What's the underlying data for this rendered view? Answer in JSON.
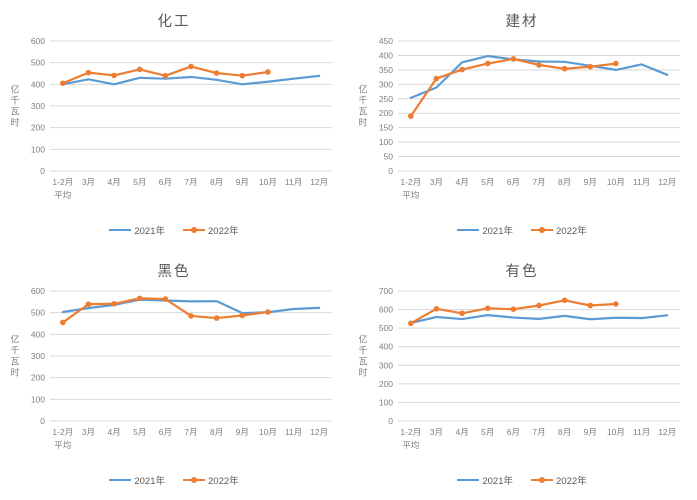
{
  "page": {
    "background": "#ffffff"
  },
  "colors": {
    "series_2021": "#5B9BD5",
    "series_2022": "#ED7D31",
    "gridline": "#D9D9D9",
    "axis_text": "#7F7F7F",
    "title_text": "#595959"
  },
  "chart_data": [
    {
      "type": "line",
      "title": "化工",
      "ylabel": "亿千瓦时",
      "categories": [
        [
          "1-2月",
          "平均"
        ],
        "3月",
        "4月",
        "5月",
        "6月",
        "7月",
        "8月",
        "9月",
        "10月",
        "11月",
        "12月"
      ],
      "ylim": [
        0,
        600
      ],
      "ytick_step": 100,
      "grid": true,
      "legend_position": "bottom",
      "series": [
        {
          "name": "2021年",
          "color": "#5B9BD5",
          "marker": false,
          "values": [
            400,
            423,
            400,
            430,
            426,
            434,
            421,
            400,
            412,
            426,
            439
          ]
        },
        {
          "name": "2022年",
          "color": "#ED7D31",
          "marker": true,
          "values": [
            405,
            454,
            441,
            469,
            440,
            482,
            452,
            440,
            457
          ]
        }
      ]
    },
    {
      "type": "line",
      "title": "建材",
      "ylabel": "亿千瓦时",
      "categories": [
        [
          "1-2月",
          "平均"
        ],
        "3月",
        "4月",
        "5月",
        "6月",
        "7月",
        "8月",
        "9月",
        "10月",
        "11月",
        "12月"
      ],
      "ylim": [
        0,
        450
      ],
      "ytick_step": 50,
      "grid": true,
      "legend_position": "bottom",
      "series": [
        {
          "name": "2021年",
          "color": "#5B9BD5",
          "marker": false,
          "values": [
            253,
            289,
            376,
            398,
            386,
            379,
            378,
            364,
            350,
            369,
            333
          ]
        },
        {
          "name": "2022年",
          "color": "#ED7D31",
          "marker": true,
          "values": [
            190,
            320,
            351,
            372,
            388,
            367,
            354,
            361,
            372
          ]
        }
      ]
    },
    {
      "type": "line",
      "title": "黑色",
      "ylabel": "亿千瓦时",
      "categories": [
        [
          "1-2月",
          "平均"
        ],
        "3月",
        "4月",
        "5月",
        "6月",
        "7月",
        "8月",
        "9月",
        "10月",
        "11月",
        "12月"
      ],
      "ylim": [
        0,
        600
      ],
      "ytick_step": 100,
      "grid": true,
      "legend_position": "bottom",
      "series": [
        {
          "name": "2021年",
          "color": "#5B9BD5",
          "marker": false,
          "values": [
            503,
            521,
            536,
            560,
            556,
            552,
            553,
            498,
            502,
            517,
            522
          ]
        },
        {
          "name": "2022年",
          "color": "#ED7D31",
          "marker": true,
          "values": [
            455,
            539,
            541,
            566,
            563,
            485,
            475,
            487,
            503
          ]
        }
      ]
    },
    {
      "type": "line",
      "title": "有色",
      "ylabel": "亿千瓦时",
      "categories": [
        [
          "1-2月",
          "平均"
        ],
        "3月",
        "4月",
        "5月",
        "6月",
        "7月",
        "8月",
        "9月",
        "10月",
        "11月",
        "12月"
      ],
      "ylim": [
        0,
        700
      ],
      "ytick_step": 100,
      "grid": true,
      "legend_position": "bottom",
      "series": [
        {
          "name": "2021年",
          "color": "#5B9BD5",
          "marker": false,
          "values": [
            528,
            560,
            549,
            570,
            557,
            550,
            566,
            548,
            556,
            554,
            569
          ]
        },
        {
          "name": "2022年",
          "color": "#ED7D31",
          "marker": true,
          "values": [
            526,
            604,
            580,
            607,
            602,
            622,
            650,
            622,
            630
          ]
        }
      ]
    }
  ]
}
